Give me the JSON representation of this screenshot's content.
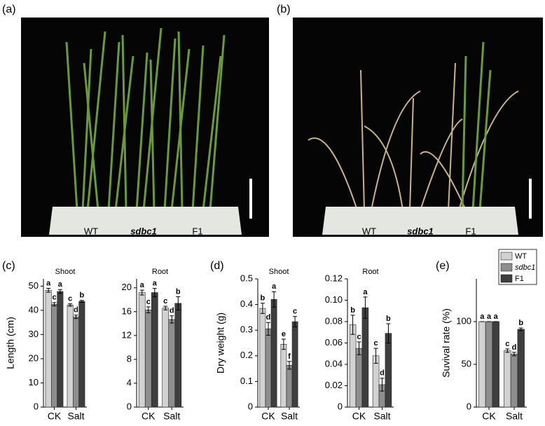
{
  "photos": [
    {
      "label": "(a)",
      "tray_labels": [
        "WT",
        "sdbc1",
        "F1"
      ]
    },
    {
      "label": "(b)",
      "tray_labels": [
        "WT",
        "sdbc1",
        "F1"
      ]
    }
  ],
  "chart_data": [
    {
      "type": "bar",
      "panel": "(c)",
      "title": "Shoot",
      "y_label": "Length (cm)",
      "categories": [
        "CK",
        "Salt"
      ],
      "ylim": [
        0,
        53
      ],
      "yticks": [
        0,
        10,
        20,
        30,
        40,
        50
      ],
      "series": [
        {
          "name": "WT",
          "color": "#d2d2d2",
          "values": [
            48.3,
            42.2
          ],
          "errors": [
            0.8,
            0.5
          ],
          "letters": [
            "a",
            "c"
          ]
        },
        {
          "name": "sdbc1",
          "color": "#8e8e8e",
          "values": [
            42.5,
            37.3
          ],
          "errors": [
            0.7,
            0.7
          ],
          "letters": [
            "c",
            "d"
          ]
        },
        {
          "name": "F1",
          "color": "#3e3e3e",
          "values": [
            47.8,
            43.7
          ],
          "errors": [
            0.8,
            0.4
          ],
          "letters": [
            "a",
            "b"
          ]
        }
      ]
    },
    {
      "type": "bar",
      "title": "Root",
      "categories": [
        "CK",
        "Salt"
      ],
      "ylim": [
        0,
        21.5
      ],
      "yticks": [
        0,
        4,
        8,
        12,
        16,
        20
      ],
      "series": [
        {
          "name": "WT",
          "color": "#d2d2d2",
          "values": [
            19.2,
            16.6
          ],
          "errors": [
            0.4,
            0.3
          ],
          "letters": [
            "a",
            "c"
          ]
        },
        {
          "name": "sdbc1",
          "color": "#8e8e8e",
          "values": [
            16.3,
            14.7
          ],
          "errors": [
            0.5,
            0.6
          ],
          "letters": [
            "c",
            "d"
          ]
        },
        {
          "name": "F1",
          "color": "#3e3e3e",
          "values": [
            19.2,
            17.4
          ],
          "errors": [
            0.7,
            1.1
          ],
          "letters": [
            "a",
            "b"
          ]
        }
      ]
    },
    {
      "type": "bar",
      "panel": "(d)",
      "title": "Shoot",
      "y_label": "Dry weight (g)",
      "categories": [
        "CK",
        "Salt"
      ],
      "ylim": [
        0,
        0.5
      ],
      "yticks": [
        0,
        0.1,
        0.2,
        0.3,
        0.4,
        0.5
      ],
      "series": [
        {
          "name": "WT",
          "color": "#d2d2d2",
          "values": [
            0.385,
            0.245
          ],
          "errors": [
            0.02,
            0.02
          ],
          "letters": [
            "b",
            "e"
          ]
        },
        {
          "name": "sdbc1",
          "color": "#8e8e8e",
          "values": [
            0.305,
            0.163
          ],
          "errors": [
            0.025,
            0.015
          ],
          "letters": [
            "d",
            "f"
          ]
        },
        {
          "name": "F1",
          "color": "#3e3e3e",
          "values": [
            0.42,
            0.333
          ],
          "errors": [
            0.03,
            0.02
          ],
          "letters": [
            "a",
            "c"
          ]
        }
      ]
    },
    {
      "type": "bar",
      "title": "Root",
      "categories": [
        "CK",
        "Salt"
      ],
      "ylim": [
        0,
        0.12
      ],
      "yticks": [
        0,
        0.02,
        0.04,
        0.06,
        0.08,
        {
          "value": 0.1,
          "label": "0.10"
        },
        0.12
      ],
      "series": [
        {
          "name": "WT",
          "color": "#d2d2d2",
          "values": [
            0.077,
            0.048
          ],
          "errors": [
            0.009,
            0.007
          ],
          "letters": [
            "b",
            "c"
          ]
        },
        {
          "name": "sdbc1",
          "color": "#8e8e8e",
          "values": [
            0.055,
            0.021
          ],
          "errors": [
            0.006,
            0.006
          ],
          "letters": [
            "c",
            "d"
          ]
        },
        {
          "name": "F1",
          "color": "#3e3e3e",
          "values": [
            0.093,
            0.069
          ],
          "errors": [
            0.01,
            0.009
          ],
          "letters": [
            "a",
            "b"
          ]
        }
      ]
    },
    {
      "type": "bar",
      "panel": "(e)",
      "y_label": "Suvival rate (%)",
      "legend": "top-right",
      "categories": [
        "CK",
        "Salt"
      ],
      "ylim": [
        0,
        150
      ],
      "yticks": [
        0,
        50,
        100
      ],
      "series": [
        {
          "name": "WT",
          "color": "#d2d2d2",
          "values": [
            100,
            66
          ],
          "errors": [
            0,
            2
          ],
          "letters": [
            "a",
            "c"
          ]
        },
        {
          "name": "sdbc1",
          "color": "#8e8e8e",
          "values": [
            100,
            62
          ],
          "errors": [
            0,
            2
          ],
          "letters": [
            "a",
            "d"
          ]
        },
        {
          "name": "F1",
          "color": "#3e3e3e",
          "values": [
            100,
            91
          ],
          "errors": [
            0,
            1.5
          ],
          "letters": [
            "a",
            "b"
          ]
        }
      ]
    }
  ]
}
